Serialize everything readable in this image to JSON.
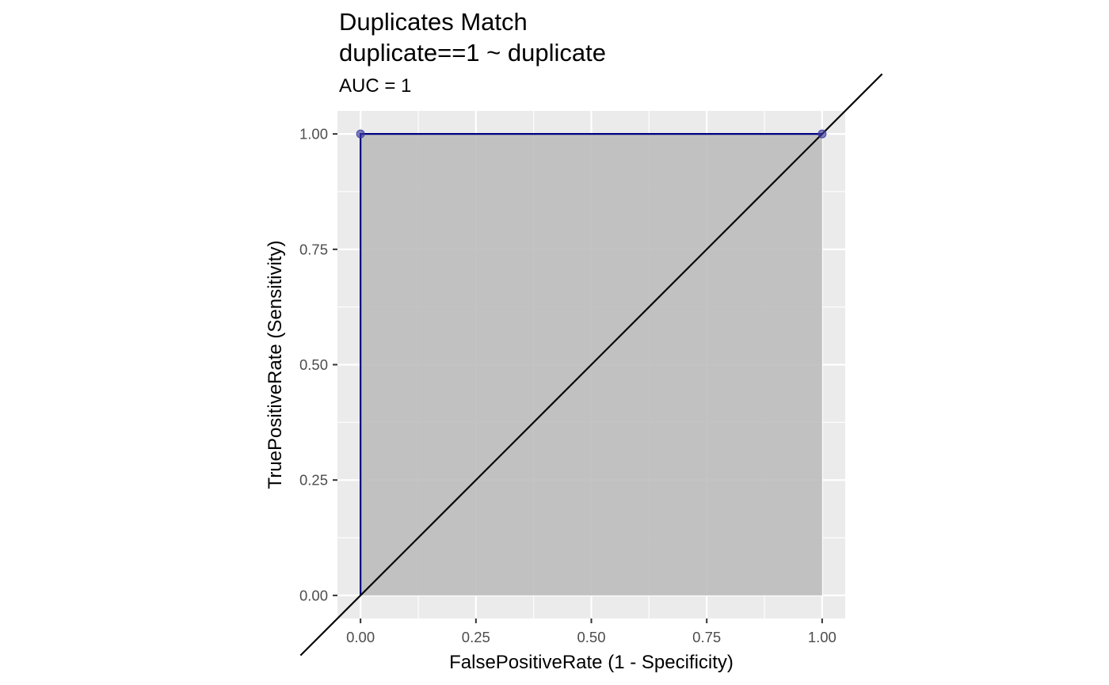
{
  "chart_data": {
    "type": "line",
    "title_lines": [
      "Duplicates Match",
      "duplicate==1 ~ duplicate"
    ],
    "subtitle": "AUC = 1",
    "xlabel": "FalsePositiveRate (1 - Specificity)",
    "ylabel": "TruePositiveRate (Sensitivity)",
    "xlim": [
      -0.05,
      1.05
    ],
    "ylim": [
      -0.05,
      1.05
    ],
    "x_ticks": [
      0,
      0.25,
      0.5,
      0.75,
      1
    ],
    "x_tick_labels": [
      "0.00",
      "0.25",
      "0.50",
      "0.75",
      "1.00"
    ],
    "y_ticks": [
      0,
      0.25,
      0.5,
      0.75,
      1
    ],
    "y_tick_labels": [
      "0.00",
      "0.25",
      "0.50",
      "0.75",
      "1.00"
    ],
    "grid": true,
    "auc_value": 1,
    "series": [
      {
        "x": [
          0,
          0,
          1
        ],
        "y": [
          0,
          1,
          1
        ],
        "line_color": "#000080",
        "area_fill": "#bdbdbd",
        "point_color": "#3a3aa0"
      }
    ],
    "points": [
      {
        "x": 0,
        "y": 1
      },
      {
        "x": 1,
        "y": 1
      }
    ],
    "reference_line": {
      "slope": 1,
      "intercept": 0,
      "color": "#000000"
    },
    "panel_background": "#ebebeb",
    "grid_color": "#ffffff"
  }
}
